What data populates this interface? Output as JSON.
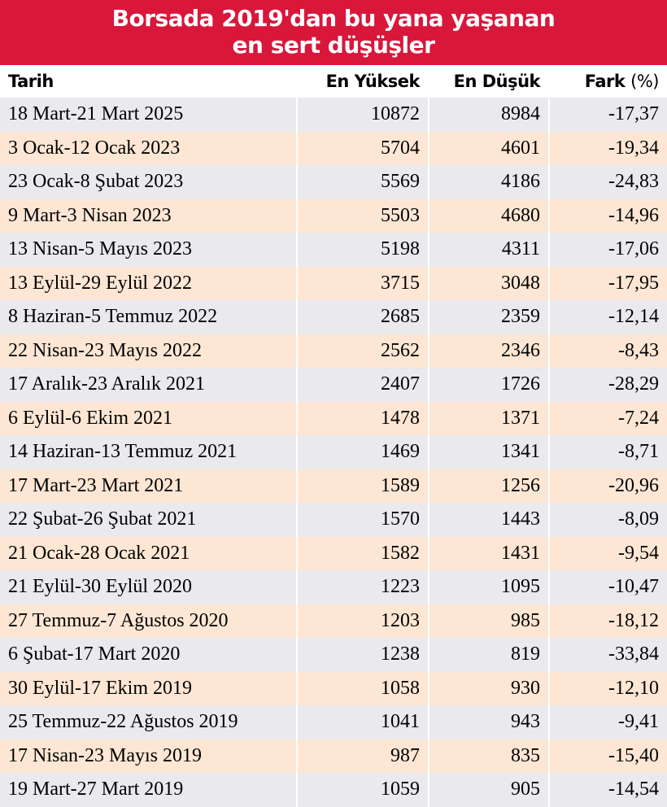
{
  "header": {
    "title_lines": [
      "Borsada 2019'dan bu yana yaşanan",
      "en sert düşüşler"
    ]
  },
  "table": {
    "columns": [
      "Tarih",
      "En Yüksek",
      "En Düşük",
      {
        "label": "Fark",
        "unit": "(%)"
      }
    ],
    "rows": [
      [
        "18 Mart-21 Mart 2025",
        "10872",
        "8984",
        "-17,37"
      ],
      [
        "3 Ocak-12 Ocak 2023",
        "5704",
        "4601",
        "-19,34"
      ],
      [
        "23 Ocak-8 Şubat 2023",
        "5569",
        "4186",
        "-24,83"
      ],
      [
        "9 Mart-3 Nisan 2023",
        "5503",
        "4680",
        "-14,96"
      ],
      [
        "13 Nisan-5 Mayıs 2023",
        "5198",
        "4311",
        "-17,06"
      ],
      [
        "13 Eylül-29 Eylül 2022",
        "3715",
        "3048",
        "-17,95"
      ],
      [
        "8 Haziran-5 Temmuz 2022",
        "2685",
        "2359",
        "-12,14"
      ],
      [
        "22 Nisan-23 Mayıs 2022",
        "2562",
        "2346",
        "-8,43"
      ],
      [
        "17 Aralık-23 Aralık 2021",
        "2407",
        "1726",
        "-28,29"
      ],
      [
        "6 Eylül-6 Ekim 2021",
        "1478",
        "1371",
        "-7,24"
      ],
      [
        "14 Haziran-13 Temmuz 2021",
        "1469",
        "1341",
        "-8,71"
      ],
      [
        "17 Mart-23 Mart 2021",
        "1589",
        "1256",
        "-20,96"
      ],
      [
        "22 Şubat-26 Şubat 2021",
        "1570",
        "1443",
        "-8,09"
      ],
      [
        "21 Ocak-28 Ocak 2021",
        "1582",
        "1431",
        "-9,54"
      ],
      [
        "21 Eylül-30 Eylül 2020",
        "1223",
        "1095",
        "-10,47"
      ],
      [
        "27 Temmuz-7 Ağustos 2020",
        "1203",
        "985",
        "-18,12"
      ],
      [
        "6 Şubat-17 Mart 2020",
        "1238",
        "819",
        "-33,84"
      ],
      [
        "30 Eylül-17 Ekim 2019",
        "1058",
        "930",
        "-12,10"
      ],
      [
        "25 Temmuz-22 Ağustos 2019",
        "1041",
        "943",
        "-9,41"
      ],
      [
        "17 Nisan-23 Mayıs 2019",
        "987",
        "835",
        "-15,40"
      ],
      [
        "19 Mart-27 Mart 2019",
        "1059",
        "905",
        "-14,54"
      ]
    ]
  }
}
